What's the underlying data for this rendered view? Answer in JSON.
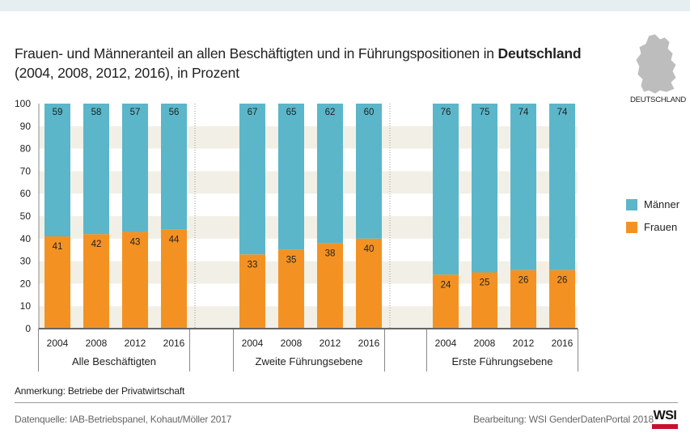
{
  "header": {
    "title_prefix": "Frauen- und Männeranteil an allen Beschäftigten und in Führungspositionen in",
    "title_bold": "Deutschland",
    "subtitle": "(2004, 2008, 2012, 2016), in Prozent",
    "map_label": "DEUTSCHLAND"
  },
  "legend": [
    {
      "label": "Männer",
      "color": "#5bb6c9"
    },
    {
      "label": "Frauen",
      "color": "#f39223"
    }
  ],
  "chart_data": {
    "type": "bar",
    "stacked": true,
    "ylim": [
      0,
      100
    ],
    "yticks": [
      0,
      10,
      20,
      30,
      40,
      50,
      60,
      70,
      80,
      90,
      100
    ],
    "grid": "alternating bands",
    "legend_position": "right",
    "groups": [
      {
        "name": "Alle Beschäftigten",
        "categories": [
          "2004",
          "2008",
          "2012",
          "2016"
        ],
        "series": [
          {
            "name": "Frauen",
            "values": [
              41,
              42,
              43,
              44
            ]
          },
          {
            "name": "Männer",
            "values": [
              59,
              58,
              57,
              56
            ]
          }
        ]
      },
      {
        "name": "Zweite Führungsebene",
        "categories": [
          "2004",
          "2008",
          "2012",
          "2016"
        ],
        "series": [
          {
            "name": "Frauen",
            "values": [
              33,
              35,
              38,
              40
            ]
          },
          {
            "name": "Männer",
            "values": [
              67,
              65,
              62,
              60
            ]
          }
        ]
      },
      {
        "name": "Erste Führungsebene",
        "categories": [
          "2004",
          "2008",
          "2012",
          "2016"
        ],
        "series": [
          {
            "name": "Frauen",
            "values": [
              24,
              25,
              26,
              26
            ]
          },
          {
            "name": "Männer",
            "values": [
              76,
              75,
              74,
              74
            ]
          }
        ]
      }
    ],
    "colors": {
      "Frauen": "#f39223",
      "Männer": "#5bb6c9"
    }
  },
  "footer": {
    "note": "Anmerkung: Betriebe der Privatwirtschaft",
    "source": "Datenquelle: IAB-Betriebspanel, Kohaut/Möller 2017",
    "credit": "Bearbeitung: WSI GenderDatenPortal 2018",
    "logo": "WSI"
  }
}
